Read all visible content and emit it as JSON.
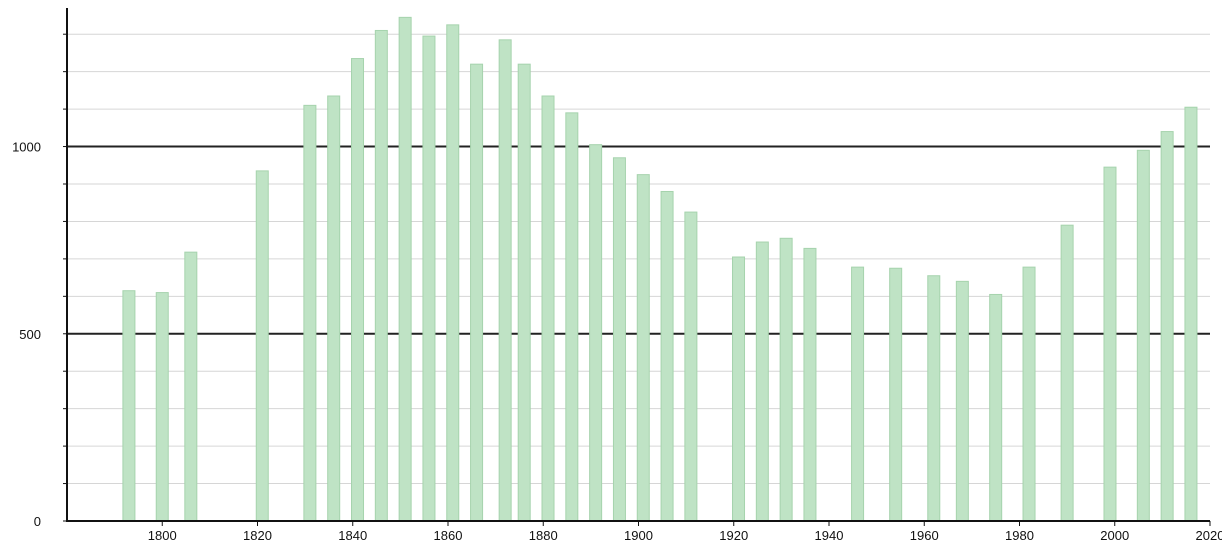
{
  "chart_data": {
    "type": "bar",
    "title": "",
    "xlabel": "",
    "ylabel": "",
    "xlim": [
      1780,
      2020
    ],
    "ylim": [
      0,
      1370
    ],
    "x_ticks": [
      1800,
      1820,
      1840,
      1860,
      1880,
      1900,
      1920,
      1940,
      1960,
      1980,
      2000,
      2020
    ],
    "y_ticks": [
      0,
      500,
      1000
    ],
    "grid": "horizontal",
    "bar_color": "#bfe3c5",
    "bar_edge_color": "#a6d3ad",
    "grid_color": "#d6d6d6",
    "major_line_color": "#222222",
    "x": [
      1793,
      1800,
      1806,
      1821,
      1831,
      1836,
      1841,
      1846,
      1851,
      1856,
      1861,
      1866,
      1872,
      1876,
      1881,
      1886,
      1891,
      1896,
      1901,
      1906,
      1911,
      1921,
      1926,
      1931,
      1936,
      1946,
      1954,
      1962,
      1968,
      1975,
      1982,
      1990,
      1999,
      2006,
      2011,
      2016
    ],
    "values": [
      615,
      610,
      718,
      935,
      1110,
      1135,
      1235,
      1310,
      1345,
      1295,
      1325,
      1220,
      1285,
      1220,
      1135,
      1090,
      1005,
      970,
      925,
      880,
      825,
      705,
      745,
      755,
      728,
      678,
      675,
      655,
      640,
      605,
      678,
      790,
      945,
      990,
      1040,
      1105
    ]
  }
}
